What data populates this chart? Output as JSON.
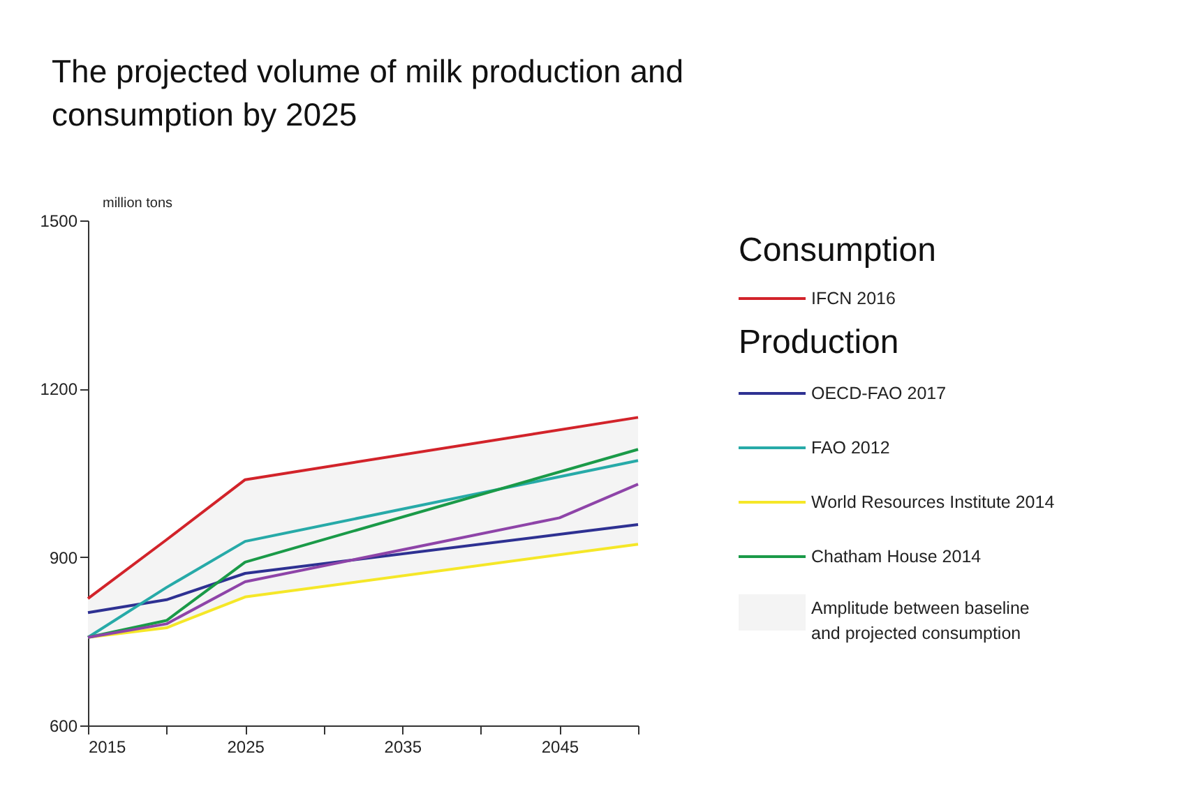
{
  "chart_data": {
    "type": "line",
    "title": "The projected volume of milk production and consumption by 2025",
    "ylabel": "million tons",
    "x": [
      2015,
      2020,
      2025,
      2050
    ],
    "series": [
      {
        "name": "IFCN 2016",
        "color": "#d2232a",
        "values": [
          826,
          931,
          1038,
          1149
        ]
      },
      {
        "name": "OECD-FAO 2017",
        "color": "#2e3192",
        "values": [
          801,
          824,
          871,
          958
        ]
      },
      {
        "name": "FAO 2012",
        "color": "#27aaa8",
        "values": [
          757,
          846,
          928,
          1072
        ]
      },
      {
        "name": "World Resources Institute 2014",
        "color": "#f5e728",
        "values": [
          757,
          774,
          829,
          923
        ]
      },
      {
        "name": "Chatham House 2014",
        "color": "#1a9a48",
        "values": [
          757,
          787,
          891,
          1092
        ]
      },
      {
        "color": "#8e44a8",
        "x": [
          2015,
          2020,
          2025,
          2045,
          2050
        ],
        "values": [
          757,
          781,
          856,
          970,
          1030
        ]
      },
      {
        "name": "Amplitude between baseline and projected consumption",
        "type": "area",
        "color": "#f4f4f4",
        "values": [
          null,
          null,
          null,
          null
        ],
        "lower": [
          757,
          774,
          829,
          923
        ],
        "upper": [
          826,
          931,
          1038,
          1149
        ]
      }
    ],
    "annotations": [
      "Consumption",
      "Production"
    ],
    "xlim": [
      2015,
      2050
    ],
    "xticks": [
      2015,
      {
        "value": 2020,
        "label": null
      },
      2025,
      {
        "value": 2030,
        "label": null
      },
      2035,
      {
        "value": 2040,
        "label": null
      },
      2045,
      {
        "value": 2050,
        "label": null
      }
    ],
    "ylim": [
      600,
      1500
    ],
    "yticks": [
      600,
      900,
      1200,
      1500
    ],
    "grid": false,
    "legend": "right"
  }
}
